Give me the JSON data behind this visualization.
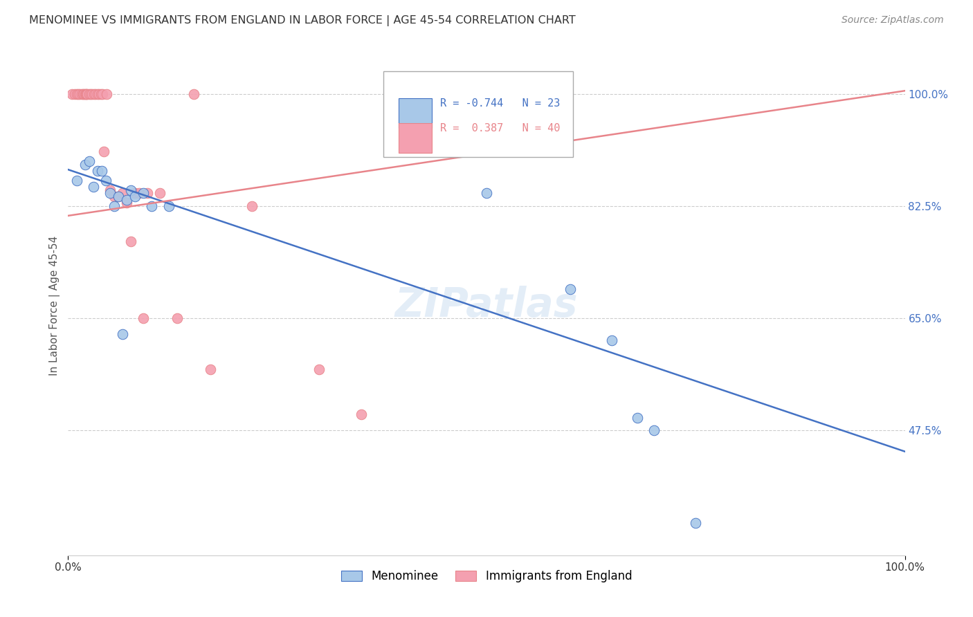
{
  "title": "MENOMINEE VS IMMIGRANTS FROM ENGLAND IN LABOR FORCE | AGE 45-54 CORRELATION CHART",
  "source": "Source: ZipAtlas.com",
  "ylabel": "In Labor Force | Age 45-54",
  "ytick_labels": [
    "100.0%",
    "82.5%",
    "65.0%",
    "47.5%"
  ],
  "ytick_values": [
    1.0,
    0.825,
    0.65,
    0.475
  ],
  "xlim": [
    0.0,
    1.0
  ],
  "ylim": [
    0.28,
    1.06
  ],
  "legend_r1": "R = -0.744",
  "legend_n1": "N = 23",
  "legend_r2": "R =  0.387",
  "legend_n2": "N = 40",
  "color_blue": "#A8C8E8",
  "color_pink": "#F4A0B0",
  "color_blue_line": "#4472C4",
  "color_pink_line": "#E8848A",
  "menominee_x": [
    0.01,
    0.02,
    0.025,
    0.03,
    0.035,
    0.04,
    0.045,
    0.05,
    0.055,
    0.06,
    0.065,
    0.07,
    0.075,
    0.08,
    0.09,
    0.1,
    0.12,
    0.5,
    0.6,
    0.65,
    0.7,
    0.68,
    0.75
  ],
  "menominee_y": [
    0.865,
    0.89,
    0.895,
    0.855,
    0.88,
    0.88,
    0.865,
    0.845,
    0.825,
    0.84,
    0.625,
    0.835,
    0.85,
    0.84,
    0.845,
    0.825,
    0.825,
    0.845,
    0.695,
    0.615,
    0.475,
    0.495,
    0.33
  ],
  "england_x": [
    0.005,
    0.008,
    0.01,
    0.012,
    0.014,
    0.016,
    0.018,
    0.019,
    0.02,
    0.021,
    0.022,
    0.023,
    0.025,
    0.027,
    0.029,
    0.031,
    0.033,
    0.035,
    0.037,
    0.039,
    0.041,
    0.043,
    0.046,
    0.05,
    0.055,
    0.06,
    0.065,
    0.07,
    0.075,
    0.08,
    0.085,
    0.09,
    0.095,
    0.11,
    0.13,
    0.15,
    0.17,
    0.22,
    0.3,
    0.35
  ],
  "england_y": [
    1.0,
    1.0,
    1.0,
    1.0,
    1.0,
    1.0,
    1.0,
    1.0,
    1.0,
    1.0,
    1.0,
    1.0,
    1.0,
    1.0,
    1.0,
    1.0,
    1.0,
    1.0,
    1.0,
    1.0,
    1.0,
    0.91,
    1.0,
    0.85,
    0.84,
    0.84,
    0.845,
    0.83,
    0.77,
    0.845,
    0.845,
    0.65,
    0.845,
    0.845,
    0.65,
    1.0,
    0.57,
    0.825,
    0.57,
    0.5
  ],
  "blue_line_x": [
    0.0,
    1.0
  ],
  "blue_line_y": [
    0.882,
    0.442
  ],
  "pink_line_x": [
    0.0,
    1.0
  ],
  "pink_line_y": [
    0.81,
    1.005
  ]
}
